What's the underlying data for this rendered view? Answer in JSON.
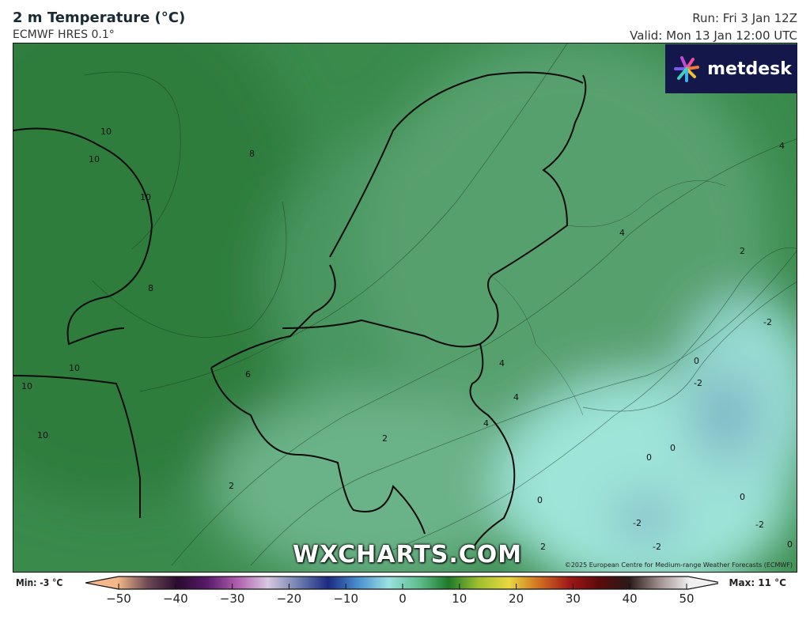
{
  "header": {
    "title": "2 m Temperature (°C)",
    "model": "ECMWF HRES 0.1°",
    "run": "Run: Fri 3 Jan 12Z",
    "valid": "Valid: Mon 13 Jan 12:00 UTC"
  },
  "logo": {
    "text": "metdesk",
    "icon": "metdesk-burst-logo",
    "background": "#13174a"
  },
  "watermark": "WXCHARTS.COM",
  "copyright": "©2025 European Centre for Medium-range Weather Forecasts (ECMWF)",
  "legend": {
    "min_label": "Min: -3 °C",
    "max_label": "Max: 11 °C",
    "ticks": [
      "−50",
      "−40",
      "−30",
      "−20",
      "−10",
      "0",
      "10",
      "20",
      "30",
      "40",
      "50"
    ],
    "range": [
      -50,
      50
    ],
    "colors": [
      "#f5b88a",
      "#6e4a55",
      "#2a0a30",
      "#5a1a6a",
      "#b060b0",
      "#d8c8e0",
      "#7080b0",
      "#1a2a80",
      "#4a90d0",
      "#9ae0e0",
      "#60c090",
      "#1e7a2a",
      "#a0c030",
      "#e8d840",
      "#d07020",
      "#a01818",
      "#5a0a0a",
      "#2a1a1a",
      "#a09090",
      "#f0f0f0"
    ]
  },
  "map": {
    "field_colors": {
      "warm": "#2a7a3a",
      "mid": "#4e9a68",
      "cool": "#78c09a",
      "cold": "#a8ece0",
      "coldest": "#80b8c8"
    },
    "contour_labels": [
      "10",
      "10",
      "10",
      "8",
      "8",
      "10",
      "10",
      "10",
      "6",
      "2",
      "2",
      "4",
      "4",
      "4",
      "4",
      "4",
      "2",
      "-2",
      "0",
      "-2",
      "0",
      "0",
      "0",
      "0",
      "-2",
      "-2",
      "-2",
      "0",
      "2"
    ]
  }
}
